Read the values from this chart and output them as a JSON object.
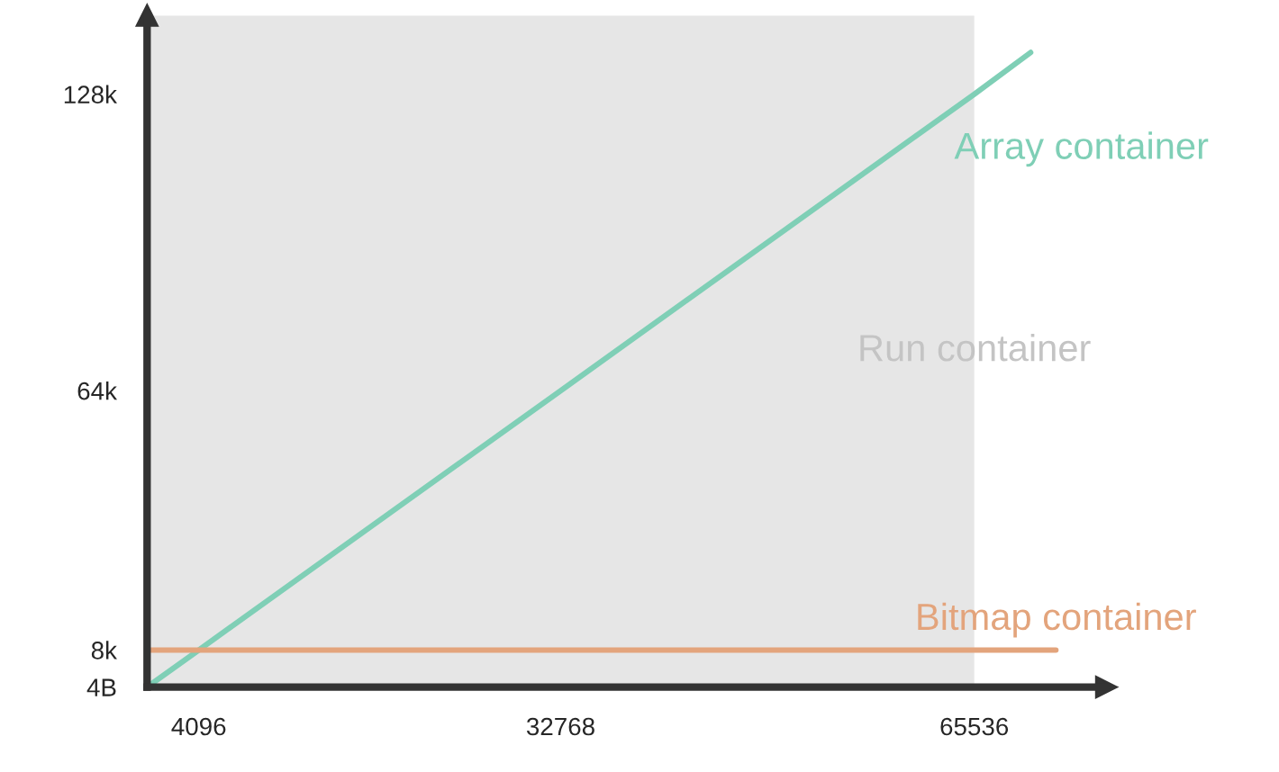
{
  "chart_data": {
    "type": "line",
    "series": [
      {
        "name": "Array container",
        "color": "#7fcfb6",
        "x": [
          0,
          4096,
          32768,
          65536,
          70000
        ],
        "values": [
          0,
          8000,
          64000,
          128000,
          137000
        ]
      },
      {
        "name": "Bitmap container",
        "color": "#e3a47c",
        "x": [
          0,
          72000
        ],
        "values": [
          8000,
          8000
        ]
      }
    ],
    "xlim": [
      0,
      76000
    ],
    "ylim": [
      0,
      145000
    ],
    "xticks": [
      4096,
      32768,
      65536
    ],
    "yticks": [
      {
        "value": 4,
        "label": "4B"
      },
      {
        "value": 8000,
        "label": "8k"
      },
      {
        "value": 64000,
        "label": "64k"
      },
      {
        "value": 128000,
        "label": "128k"
      }
    ],
    "bands": [
      {
        "axis": "x",
        "from": 0,
        "to": 65536,
        "label": "Run container",
        "color": "#e6e6e6"
      }
    ],
    "grid": false,
    "marker": "none",
    "line_style": "solid"
  }
}
